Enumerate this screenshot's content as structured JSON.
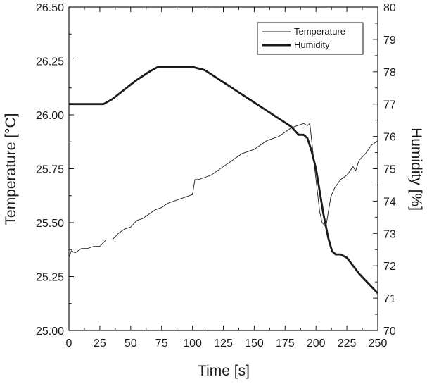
{
  "chart_data": {
    "type": "line",
    "title": "",
    "xlabel": "Time [s]",
    "ylabel_left": "Temperature [°C]",
    "ylabel_right": "Humidity [%]",
    "xlim": [
      0,
      250
    ],
    "ylim_left": [
      25.0,
      26.5
    ],
    "ylim_right": [
      70,
      80
    ],
    "xticks": [
      0,
      25,
      50,
      75,
      100,
      125,
      150,
      175,
      200,
      225,
      250
    ],
    "xtick_labels": [
      "0",
      "25",
      "50",
      "75",
      "100",
      "125",
      "150",
      "175",
      "200",
      "225",
      "250"
    ],
    "yticks_left": [
      25.0,
      25.25,
      25.5,
      25.75,
      26.0,
      26.25,
      26.5
    ],
    "ytick_labels_left": [
      "25.00",
      "25.25",
      "25.50",
      "25.75",
      "26.00",
      "26.25",
      "26.50"
    ],
    "yticks_right": [
      70,
      71,
      72,
      73,
      74,
      75,
      76,
      77,
      78,
      79,
      80
    ],
    "ytick_labels_right": [
      "70",
      "71",
      "72",
      "73",
      "74",
      "75",
      "76",
      "77",
      "78",
      "79",
      "80"
    ],
    "grid": false,
    "legend_position": "top-right",
    "series": [
      {
        "name": "Temperature",
        "axis": "left",
        "color": "#1a1a1a",
        "style": "thin",
        "x": [
          0,
          2,
          5,
          10,
          15,
          20,
          25,
          30,
          35,
          40,
          45,
          50,
          55,
          60,
          65,
          70,
          75,
          80,
          85,
          90,
          95,
          100,
          102,
          105,
          110,
          115,
          120,
          125,
          130,
          135,
          140,
          145,
          150,
          155,
          160,
          165,
          170,
          175,
          180,
          185,
          190,
          193,
          195,
          198,
          200,
          203,
          205,
          208,
          210,
          212,
          215,
          220,
          225,
          230,
          232,
          235,
          240,
          245,
          250
        ],
        "y": [
          25.34,
          25.37,
          25.36,
          25.38,
          25.38,
          25.39,
          25.39,
          25.42,
          25.42,
          25.45,
          25.47,
          25.48,
          25.51,
          25.52,
          25.54,
          25.56,
          25.57,
          25.59,
          25.6,
          25.61,
          25.62,
          25.63,
          25.7,
          25.7,
          25.71,
          25.72,
          25.74,
          25.76,
          25.78,
          25.8,
          25.82,
          25.83,
          25.84,
          25.86,
          25.88,
          25.89,
          25.9,
          25.92,
          25.94,
          25.95,
          25.96,
          25.95,
          25.96,
          25.8,
          25.7,
          25.55,
          25.5,
          25.48,
          25.55,
          25.62,
          25.66,
          25.7,
          25.72,
          25.76,
          25.74,
          25.79,
          25.82,
          25.86,
          25.88
        ]
      },
      {
        "name": "Humidity",
        "axis": "right",
        "color": "#1a1a1a",
        "style": "thick",
        "x": [
          0,
          10,
          20,
          28,
          35,
          45,
          55,
          65,
          72,
          80,
          90,
          100,
          110,
          120,
          130,
          140,
          150,
          160,
          170,
          180,
          186,
          190,
          193,
          196,
          200,
          203,
          206,
          210,
          213,
          216,
          220,
          225,
          230,
          235,
          240,
          245,
          250
        ],
        "y": [
          77.0,
          77.0,
          77.0,
          77.0,
          77.15,
          77.45,
          77.75,
          78.0,
          78.15,
          78.15,
          78.15,
          78.15,
          78.05,
          77.8,
          77.55,
          77.3,
          77.05,
          76.8,
          76.55,
          76.3,
          76.05,
          76.05,
          75.95,
          75.6,
          75.0,
          74.3,
          73.6,
          72.85,
          72.45,
          72.35,
          72.35,
          72.25,
          72.0,
          71.75,
          71.55,
          71.35,
          71.15
        ]
      }
    ]
  }
}
